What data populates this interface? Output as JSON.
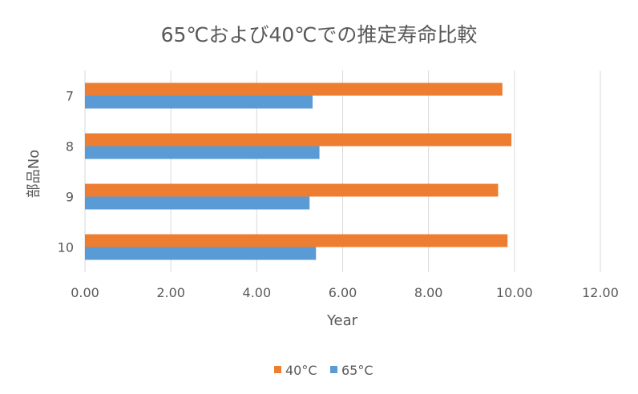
{
  "chart_data": {
    "type": "bar",
    "orientation": "horizontal",
    "title": "65℃および40℃での推定寿命比較",
    "xlabel": "Year",
    "ylabel": "部品No",
    "categories": [
      "7",
      "8",
      "9",
      "10"
    ],
    "series": [
      {
        "name": "40°C",
        "color": "#ED7D31",
        "values": [
          9.72,
          9.93,
          9.62,
          9.84
        ]
      },
      {
        "name": "65°C",
        "color": "#5B9BD5",
        "values": [
          5.3,
          5.46,
          5.23,
          5.38
        ]
      }
    ],
    "xlim": [
      0,
      12
    ],
    "xticks": [
      "0.00",
      "2.00",
      "4.00",
      "6.00",
      "8.00",
      "10.00",
      "12.00"
    ],
    "grid": true,
    "legend": "bottom"
  }
}
